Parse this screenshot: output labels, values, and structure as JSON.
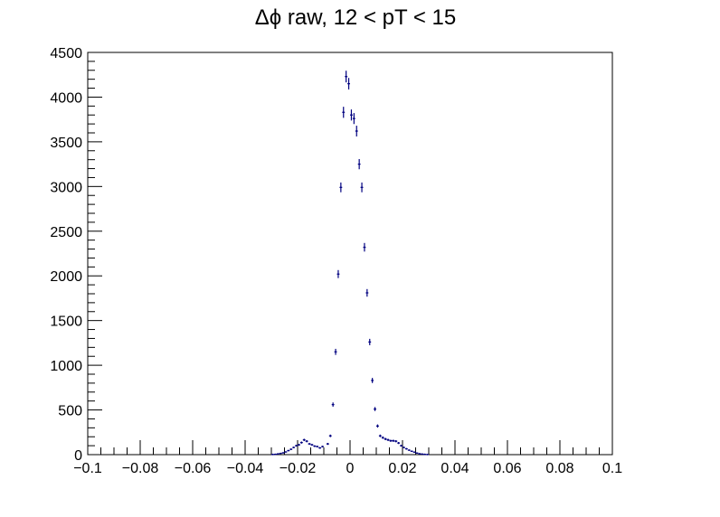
{
  "chart_data": {
    "type": "scatter",
    "title": "Δϕ raw, 12 < pT < 15",
    "xlabel": "",
    "ylabel": "",
    "xlim": [
      -0.1,
      0.1
    ],
    "ylim": [
      0,
      4500
    ],
    "grid": false,
    "legend": "none",
    "x_tick_labels": [
      "−0.1",
      "−0.08",
      "−0.06",
      "−0.04",
      "−0.02",
      "0",
      "0.02",
      "0.04",
      "0.06",
      "0.08",
      "0.1"
    ],
    "y_tick_labels": [
      "0",
      "500",
      "1000",
      "1500",
      "2000",
      "2500",
      "3000",
      "3500",
      "4000",
      "4500"
    ],
    "x_ticks": [
      -0.1,
      -0.08,
      -0.06,
      -0.04,
      -0.02,
      0,
      0.02,
      0.04,
      0.06,
      0.08,
      0.1
    ],
    "y_ticks": [
      0,
      500,
      1000,
      1500,
      2000,
      2500,
      3000,
      3500,
      4000,
      4500
    ],
    "marker_color": "#000080",
    "points": [
      {
        "x": -0.0295,
        "y": 2
      },
      {
        "x": -0.0285,
        "y": 4
      },
      {
        "x": -0.0275,
        "y": 8
      },
      {
        "x": -0.0265,
        "y": 14
      },
      {
        "x": -0.0255,
        "y": 20
      },
      {
        "x": -0.0245,
        "y": 30
      },
      {
        "x": -0.0235,
        "y": 45
      },
      {
        "x": -0.0225,
        "y": 60
      },
      {
        "x": -0.0215,
        "y": 80
      },
      {
        "x": -0.0205,
        "y": 100
      },
      {
        "x": -0.0195,
        "y": 110
      },
      {
        "x": -0.0185,
        "y": 135
      },
      {
        "x": -0.0175,
        "y": 165
      },
      {
        "x": -0.0165,
        "y": 150
      },
      {
        "x": -0.0155,
        "y": 120
      },
      {
        "x": -0.0145,
        "y": 110
      },
      {
        "x": -0.0135,
        "y": 95
      },
      {
        "x": -0.0125,
        "y": 90
      },
      {
        "x": -0.0115,
        "y": 75
      },
      {
        "x": -0.0105,
        "y": 90
      },
      {
        "x": -0.0085,
        "y": 120
      },
      {
        "x": -0.0075,
        "y": 210
      },
      {
        "x": -0.0065,
        "y": 560
      },
      {
        "x": -0.0055,
        "y": 1150
      },
      {
        "x": -0.0045,
        "y": 2020
      },
      {
        "x": -0.0035,
        "y": 2990
      },
      {
        "x": -0.0025,
        "y": 3830
      },
      {
        "x": -0.0015,
        "y": 4230
      },
      {
        "x": -0.0005,
        "y": 4150
      },
      {
        "x": 0.0005,
        "y": 3800
      },
      {
        "x": 0.0015,
        "y": 3760
      },
      {
        "x": 0.0025,
        "y": 3620
      },
      {
        "x": 0.0035,
        "y": 3250
      },
      {
        "x": 0.0045,
        "y": 2990
      },
      {
        "x": 0.0055,
        "y": 2320
      },
      {
        "x": 0.0065,
        "y": 1810
      },
      {
        "x": 0.0075,
        "y": 1260
      },
      {
        "x": 0.0085,
        "y": 830
      },
      {
        "x": 0.0095,
        "y": 510
      },
      {
        "x": 0.0105,
        "y": 320
      },
      {
        "x": 0.0115,
        "y": 210
      },
      {
        "x": 0.0125,
        "y": 190
      },
      {
        "x": 0.0135,
        "y": 175
      },
      {
        "x": 0.0145,
        "y": 165
      },
      {
        "x": 0.0155,
        "y": 155
      },
      {
        "x": 0.0165,
        "y": 155
      },
      {
        "x": 0.0175,
        "y": 150
      },
      {
        "x": 0.0185,
        "y": 130
      },
      {
        "x": 0.0195,
        "y": 100
      },
      {
        "x": 0.0205,
        "y": 80
      },
      {
        "x": 0.0215,
        "y": 65
      },
      {
        "x": 0.0225,
        "y": 50
      },
      {
        "x": 0.0235,
        "y": 38
      },
      {
        "x": 0.0245,
        "y": 28
      },
      {
        "x": 0.0255,
        "y": 18
      },
      {
        "x": 0.0265,
        "y": 10
      },
      {
        "x": 0.0275,
        "y": 6
      },
      {
        "x": 0.0285,
        "y": 3
      },
      {
        "x": 0.0295,
        "y": 1
      }
    ]
  }
}
